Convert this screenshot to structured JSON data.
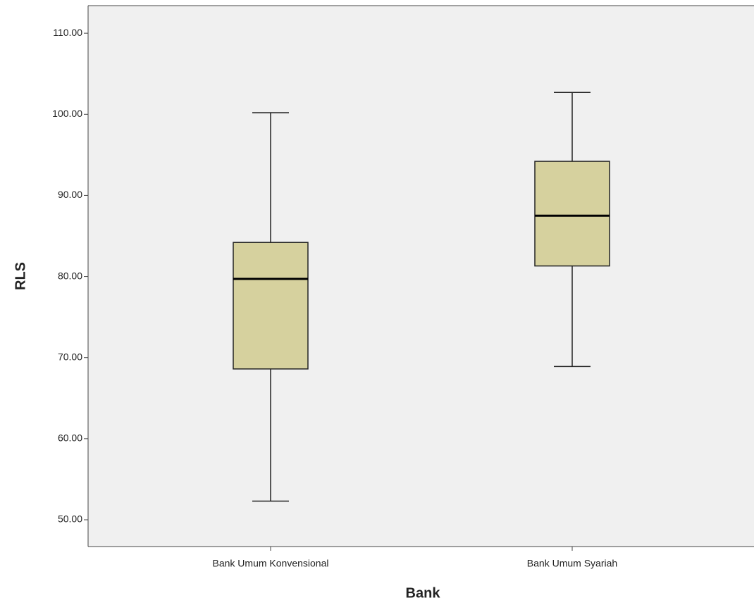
{
  "chart_data": {
    "type": "box",
    "x_label": "Bank",
    "y_label": "RLS",
    "categories": [
      "Bank Umum Konvensional",
      "Bank Umum Syariah"
    ],
    "boxes": [
      {
        "min": 52.3,
        "q1": 68.6,
        "median": 79.7,
        "q3": 84.2,
        "max": 100.2
      },
      {
        "min": 68.9,
        "q1": 81.3,
        "median": 87.5,
        "q3": 94.2,
        "max": 102.7
      }
    ],
    "color": "#d6d19e",
    "ylim": [
      46.7,
      113.4
    ],
    "yticks": [
      {
        "value": 50,
        "label": "50.00"
      },
      {
        "value": 60,
        "label": "60.00"
      },
      {
        "value": 70,
        "label": "70.00"
      },
      {
        "value": 80,
        "label": "80.00"
      },
      {
        "value": 90,
        "label": "90.00"
      },
      {
        "value": 100,
        "label": "100.00"
      },
      {
        "value": 110,
        "label": "110.00"
      }
    ]
  }
}
